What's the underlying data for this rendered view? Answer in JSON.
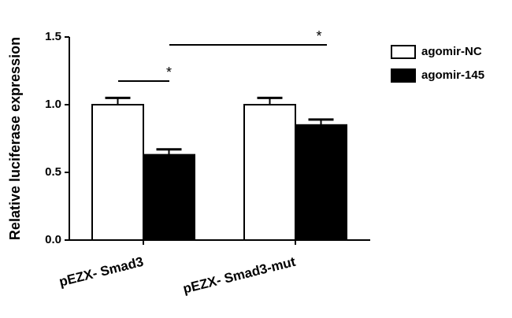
{
  "chart_data": {
    "type": "bar",
    "y_label": "Relative luciferase expression",
    "categories": [
      "pEZX- Smad3",
      "pEZX- Smad3-mut"
    ],
    "series": [
      {
        "name": "agomir-NC",
        "color": "#ffffff",
        "values": [
          1.0,
          1.0
        ],
        "errors": [
          0.05,
          0.05
        ]
      },
      {
        "name": "agomir-145",
        "color": "#000000",
        "values": [
          0.63,
          0.85
        ],
        "errors": [
          0.04,
          0.04
        ]
      }
    ],
    "ylim": [
      0,
      1.5
    ],
    "yticks": [
      {
        "value": 0,
        "label": "0.0"
      },
      {
        "value": 0.5,
        "label": "0.5"
      },
      {
        "value": 1.0,
        "label": "1.0"
      },
      {
        "value": 1.5,
        "label": "1.5"
      }
    ],
    "annotations": [
      "*",
      "*"
    ],
    "legend": "upper right",
    "grid": false
  }
}
